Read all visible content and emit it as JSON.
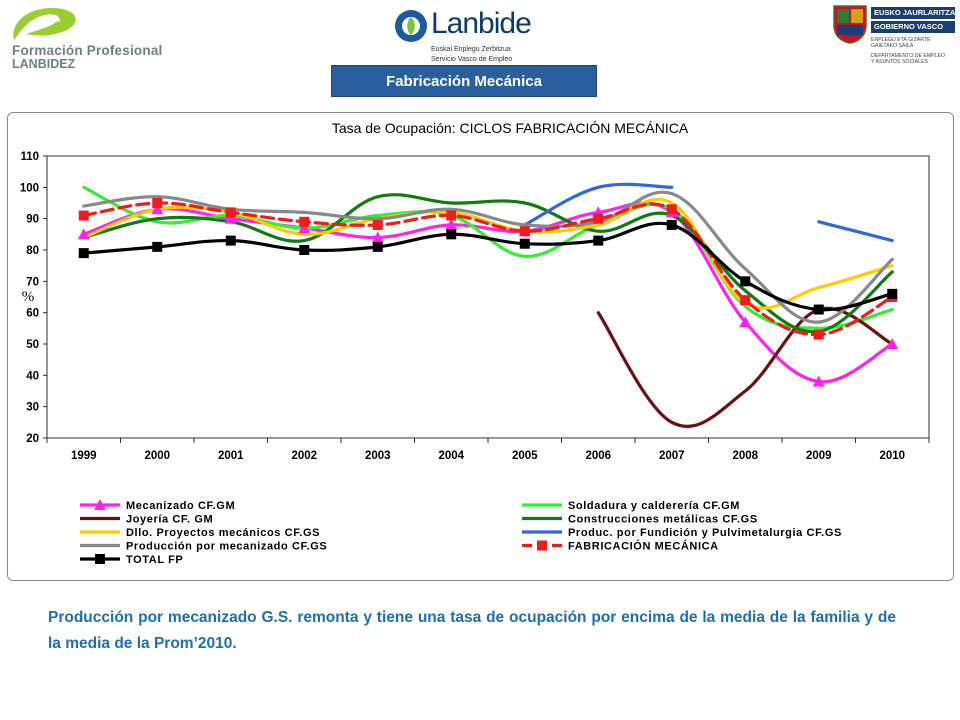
{
  "header": {
    "left_logo_line1": "Formación Profesional",
    "left_logo_line2": "LANBIDEZ",
    "center_logo_name": "Lanbide",
    "center_logo_sub1": "Euskal Enplegu Zerbitzua",
    "center_logo_sub2": "Servicio Vasco de Empleo",
    "right_logo_bar1": "EUSKO JAURLARITZA",
    "right_logo_bar2": "GOBIERNO VASCO",
    "right_logo_d1": "ENPLEGU ETA GIZARTE",
    "right_logo_d2": "GAIETAKO SAILA",
    "right_logo_d3": "DEPARTAMENTO DE EMPLEO",
    "right_logo_d4": "Y ASUNTOS SOCIALES",
    "section_title": "Fabricación Mecánica"
  },
  "note": "Producción por mecanizado G.S. remonta y tiene una tasa de ocupación por encima de la media de la familia y de la media de la Prom’2010.",
  "chart_data": {
    "type": "line",
    "title": "Tasa de Ocupación: CICLOS FABRICACIÓN MECÁNICA",
    "ylabel": "%",
    "xlabel": "",
    "ylim": [
      20,
      110
    ],
    "yticks": [
      20,
      30,
      40,
      50,
      60,
      70,
      80,
      90,
      100,
      110
    ],
    "grid": false,
    "legend_position": "bottom",
    "categories": [
      "1999",
      "2000",
      "2001",
      "2002",
      "2003",
      "2004",
      "2005",
      "2006",
      "2007",
      "2008",
      "2009",
      "2010"
    ],
    "series": [
      {
        "name": "Mecanizado CF.GM",
        "color": "#ff22ee",
        "dash": false,
        "marker": "triangle",
        "values": [
          85,
          93,
          90,
          87,
          84,
          88,
          86,
          92,
          92,
          57,
          38,
          50
        ]
      },
      {
        "name": "Soldadura y calderería CF.GM",
        "color": "#33ee33",
        "dash": false,
        "marker": "none",
        "values": [
          100,
          89,
          91,
          87,
          91,
          91,
          78,
          88,
          93,
          62,
          55,
          61
        ]
      },
      {
        "name": "Joyería CF. GM",
        "color": "#6b1010",
        "dash": false,
        "marker": "none",
        "values": [
          null,
          null,
          null,
          null,
          null,
          null,
          null,
          60,
          25,
          35,
          61,
          50
        ]
      },
      {
        "name": "Construcciones metálicas CF.GS",
        "color": "#117a11",
        "dash": false,
        "marker": "none",
        "values": [
          84,
          90,
          89,
          83,
          97,
          95,
          95,
          86,
          91,
          67,
          54,
          73
        ]
      },
      {
        "name": "Dllo. Proyectos mecánicos CF.GS",
        "color": "#ffcc00",
        "dash": false,
        "marker": "none",
        "values": [
          84,
          93,
          92,
          85,
          90,
          92,
          86,
          88,
          95,
          63,
          68,
          75
        ]
      },
      {
        "name": "Produc. por Fundición y Pulvimetalurgia CF.GS",
        "color": "#3366dd",
        "dash": false,
        "marker": "none",
        "values": [
          null,
          null,
          null,
          null,
          null,
          null,
          null,
          null,
          null,
          null,
          89,
          83
        ]
      },
      {
        "name": "Producción por mecanizado CF.GS",
        "color": "#888888",
        "dash": false,
        "marker": "none",
        "values": [
          94,
          97,
          93,
          92,
          90,
          93,
          88,
          89,
          98,
          74,
          57,
          77
        ]
      },
      {
        "name": "FABRICACIÓN MECÁNICA",
        "color": "#ee1c1c",
        "dash": true,
        "marker": "square",
        "values": [
          91,
          95,
          92,
          89,
          88,
          91,
          86,
          90,
          93,
          64,
          53,
          65
        ]
      },
      {
        "name": "TOTAL FP",
        "color": "#000000",
        "dash": false,
        "marker": "square",
        "values": [
          79,
          81,
          83,
          80,
          81,
          85,
          82,
          83,
          88,
          70,
          61,
          66
        ]
      }
    ],
    "blue_partial_2005_2007": [
      null,
      null,
      null,
      null,
      null,
      null,
      88,
      100,
      100,
      null,
      null,
      null
    ]
  }
}
